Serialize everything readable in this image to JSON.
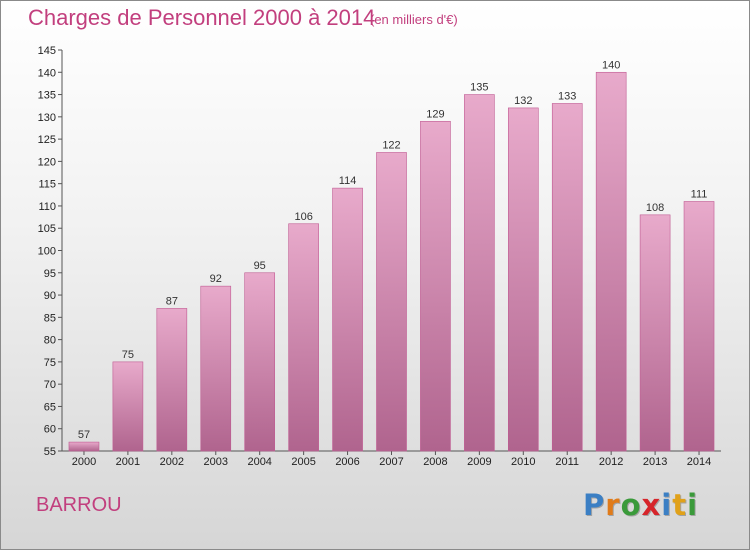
{
  "title": "Charges de Personnel 2000 à 2014",
  "subtitle": "(en milliers d'€)",
  "commune": "BARROU",
  "logo": {
    "letters": [
      {
        "ch": "P",
        "color": "#3b7fc4"
      },
      {
        "ch": "r",
        "color": "#e07b1a"
      },
      {
        "ch": "o",
        "color": "#3a9a3a"
      },
      {
        "ch": "x",
        "color": "#d6252b"
      },
      {
        "ch": "i",
        "color": "#3b7fc4"
      },
      {
        "ch": "t",
        "color": "#e0a11a"
      },
      {
        "ch": "i",
        "color": "#3a9a3a"
      }
    ]
  },
  "colors": {
    "bar_light": "#e8aacb",
    "bar_dark": "#b0648e",
    "accent": "#c23f7e"
  },
  "chart_data": {
    "type": "bar",
    "categories": [
      "2000",
      "2001",
      "2002",
      "2003",
      "2004",
      "2005",
      "2006",
      "2007",
      "2008",
      "2009",
      "2010",
      "2011",
      "2012",
      "2013",
      "2014"
    ],
    "values": [
      57,
      75,
      87,
      92,
      95,
      106,
      114,
      122,
      129,
      135,
      132,
      133,
      140,
      108,
      111
    ],
    "ylim": [
      55,
      145
    ],
    "yticks": [
      55,
      60,
      65,
      70,
      75,
      80,
      85,
      90,
      95,
      100,
      105,
      110,
      115,
      120,
      125,
      130,
      135,
      140,
      145
    ],
    "grid": false,
    "legend": "none"
  }
}
